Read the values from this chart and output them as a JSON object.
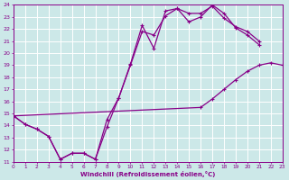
{
  "xlabel": "Windchill (Refroidissement éolien,°C)",
  "bg_color": "#cce8e8",
  "grid_color": "#aacccc",
  "line_color": "#880088",
  "xlim": [
    0,
    23
  ],
  "ylim": [
    11,
    24
  ],
  "xticks": [
    0,
    1,
    2,
    3,
    4,
    5,
    6,
    7,
    8,
    9,
    10,
    11,
    12,
    13,
    14,
    15,
    16,
    17,
    18,
    19,
    20,
    21,
    22,
    23
  ],
  "yticks": [
    11,
    12,
    13,
    14,
    15,
    16,
    17,
    18,
    19,
    20,
    21,
    22,
    23,
    24
  ],
  "line1_x": [
    0,
    1,
    2,
    3,
    4,
    5,
    6,
    7,
    8,
    9,
    10,
    11,
    12,
    13,
    14,
    15,
    16,
    17,
    18,
    19,
    20,
    21
  ],
  "line1_y": [
    14.8,
    14.1,
    13.7,
    13.1,
    11.2,
    11.7,
    11.7,
    11.2,
    13.9,
    16.3,
    19.1,
    22.3,
    20.4,
    23.5,
    23.7,
    22.6,
    23.0,
    24.0,
    23.3,
    22.1,
    21.5,
    20.7
  ],
  "line2_x": [
    0,
    1,
    2,
    3,
    4,
    5,
    6,
    7,
    8,
    9,
    10,
    11,
    12,
    13,
    14,
    15,
    16,
    17,
    18,
    19,
    20,
    21
  ],
  "line2_y": [
    14.8,
    14.1,
    13.7,
    13.1,
    11.2,
    11.7,
    11.7,
    11.2,
    14.5,
    16.3,
    19.0,
    21.8,
    21.5,
    23.1,
    23.7,
    23.3,
    23.3,
    23.9,
    22.9,
    22.2,
    21.8,
    21.0
  ],
  "line3_x": [
    0,
    16,
    17,
    18,
    19,
    20,
    21,
    22,
    23
  ],
  "line3_y": [
    14.8,
    15.5,
    16.2,
    17.0,
    17.8,
    18.5,
    19.0,
    19.2,
    19.0
  ]
}
